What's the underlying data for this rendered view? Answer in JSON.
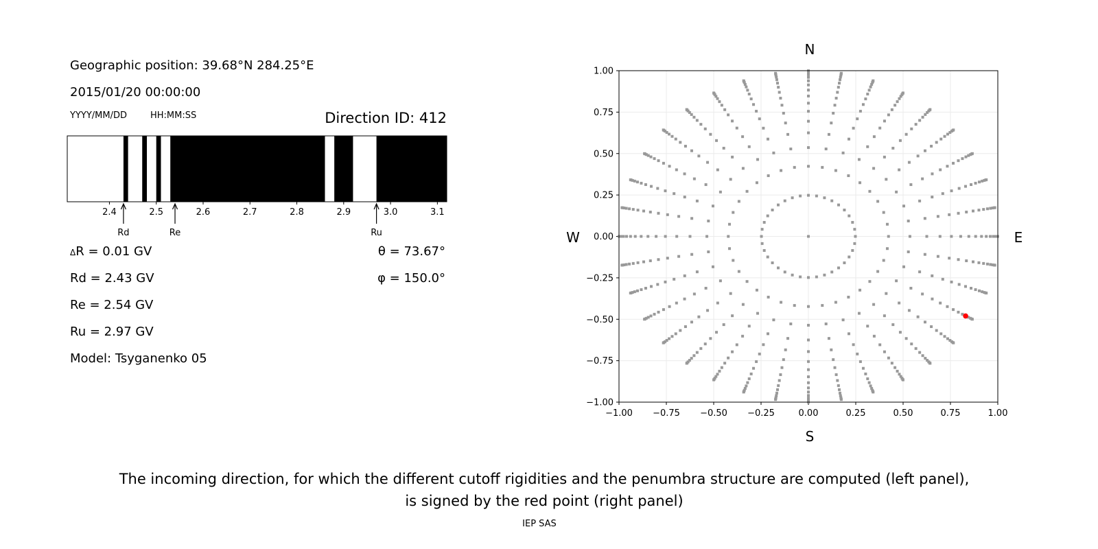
{
  "left_panel": {
    "geo_position": "Geographic position: 39.68°N 284.25°E",
    "datetime": "2015/01/20 00:00:00",
    "date_format_label": "YYYY/MM/DD",
    "time_format_label": "HH:MM:SS",
    "direction_id": "Direction ID: 412",
    "delta_symbol": "Δ",
    "delta_r": "R = 0.01 GV",
    "rd": "Rd = 2.43 GV",
    "re": "Re = 2.54 GV",
    "ru": "Ru = 2.97 GV",
    "model": "Model: Tsyganenko 05",
    "theta": "θ = 73.67°",
    "phi": "φ = 150.0°"
  },
  "caption": {
    "line1": "The incoming direction, for which the different cutoff rigidities and the penumbra structure are computed (left panel),",
    "line2": "is signed by the red point (right panel)"
  },
  "footer": "IEP SAS",
  "chart_data": [
    {
      "type": "bar",
      "xlim": [
        2.31,
        3.12
      ],
      "xticks": [
        "2.4",
        "2.5",
        "2.6",
        "2.7",
        "2.8",
        "2.9",
        "3.0",
        "3.1"
      ],
      "colors": {
        "allowed": "#000000",
        "forbidden": "#ffffff"
      },
      "segments": [
        {
          "from": 2.31,
          "to": 2.43,
          "state": "forbidden"
        },
        {
          "from": 2.43,
          "to": 2.44,
          "state": "allowed"
        },
        {
          "from": 2.44,
          "to": 2.47,
          "state": "forbidden"
        },
        {
          "from": 2.47,
          "to": 2.48,
          "state": "allowed"
        },
        {
          "from": 2.48,
          "to": 2.5,
          "state": "forbidden"
        },
        {
          "from": 2.5,
          "to": 2.51,
          "state": "allowed"
        },
        {
          "from": 2.51,
          "to": 2.53,
          "state": "forbidden"
        },
        {
          "from": 2.53,
          "to": 2.86,
          "state": "allowed"
        },
        {
          "from": 2.86,
          "to": 2.88,
          "state": "forbidden"
        },
        {
          "from": 2.88,
          "to": 2.92,
          "state": "allowed"
        },
        {
          "from": 2.92,
          "to": 2.97,
          "state": "forbidden"
        },
        {
          "from": 2.97,
          "to": 3.12,
          "state": "allowed"
        }
      ],
      "markers": [
        {
          "label": "Rd",
          "value": 2.43
        },
        {
          "label": "Re",
          "value": 2.54
        },
        {
          "label": "Ru",
          "value": 2.97
        }
      ]
    },
    {
      "type": "scatter",
      "xlim": [
        -1,
        1
      ],
      "ylim": [
        -1,
        1
      ],
      "grid": true,
      "xticks": [
        "−1.00",
        "−0.75",
        "−0.50",
        "−0.25",
        "0.00",
        "0.25",
        "0.50",
        "0.75",
        "1.00"
      ],
      "yticks": [
        "1.00",
        "0.75",
        "0.50",
        "0.25",
        "0.00",
        "−0.25",
        "−0.50",
        "−0.75",
        "−1.00"
      ],
      "compass": {
        "top": "N",
        "bottom": "S",
        "left": "W",
        "right": "E"
      },
      "grid_point_color": "#999999",
      "center_point": [
        0,
        0
      ],
      "azimuth_step_deg": 10,
      "ring_radii": [
        0.248,
        0.423,
        0.536,
        0.625,
        0.695,
        0.755,
        0.804,
        0.847,
        0.883,
        0.914,
        0.939,
        0.96,
        0.976,
        0.988,
        0.996,
        0.9995
      ],
      "highlight": {
        "x": 0.83,
        "y": -0.48,
        "color": "#ff0000"
      }
    }
  ]
}
